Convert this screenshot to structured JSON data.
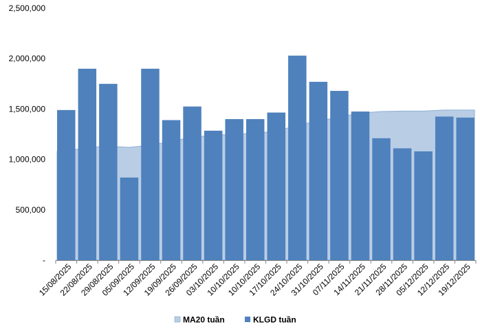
{
  "chart_data": {
    "type": "bar",
    "title": "",
    "xlabel": "",
    "ylabel": "",
    "ylim": [
      0,
      2500000
    ],
    "y_ticks": [
      0,
      500000,
      1000000,
      1500000,
      2000000,
      2500000
    ],
    "y_tick_labels": [
      "-",
      "500,000",
      "1,000,000",
      "1,500,000",
      "2,000,000",
      "2,500,000"
    ],
    "grid": false,
    "legend_position": "bottom",
    "categories": [
      "15/08/2025",
      "22/08/2025",
      "29/08/2025",
      "05/09/2025",
      "12/09/2025",
      "19/09/2025",
      "26/09/2025",
      "03/10/2025",
      "10/10/2025",
      "10/10/2025",
      "17/10/2025",
      "24/10/2025",
      "31/10/2025",
      "07/11/2025",
      "14/11/2025",
      "21/11/2025",
      "28/11/2025",
      "05/12/2025",
      "12/12/2025",
      "19/12/2025"
    ],
    "series": [
      {
        "name": "MA20 tuần",
        "type": "area",
        "color": "#b9cde5",
        "edge_color": "#8eaed3",
        "values": [
          1080000,
          1120000,
          1130000,
          1120000,
          1140000,
          1180000,
          1220000,
          1240000,
          1250000,
          1260000,
          1280000,
          1340000,
          1380000,
          1420000,
          1460000,
          1475000,
          1480000,
          1480000,
          1490000,
          1490000
        ]
      },
      {
        "name": "KLGD tuần",
        "type": "bar",
        "color": "#4f81bd",
        "values": [
          1490000,
          1900000,
          1750000,
          820000,
          1900000,
          1390000,
          1525000,
          1285000,
          1400000,
          1400000,
          1465000,
          2030000,
          1770000,
          1680000,
          1475000,
          1210000,
          1110000,
          1080000,
          1425000,
          1415000
        ]
      }
    ]
  }
}
